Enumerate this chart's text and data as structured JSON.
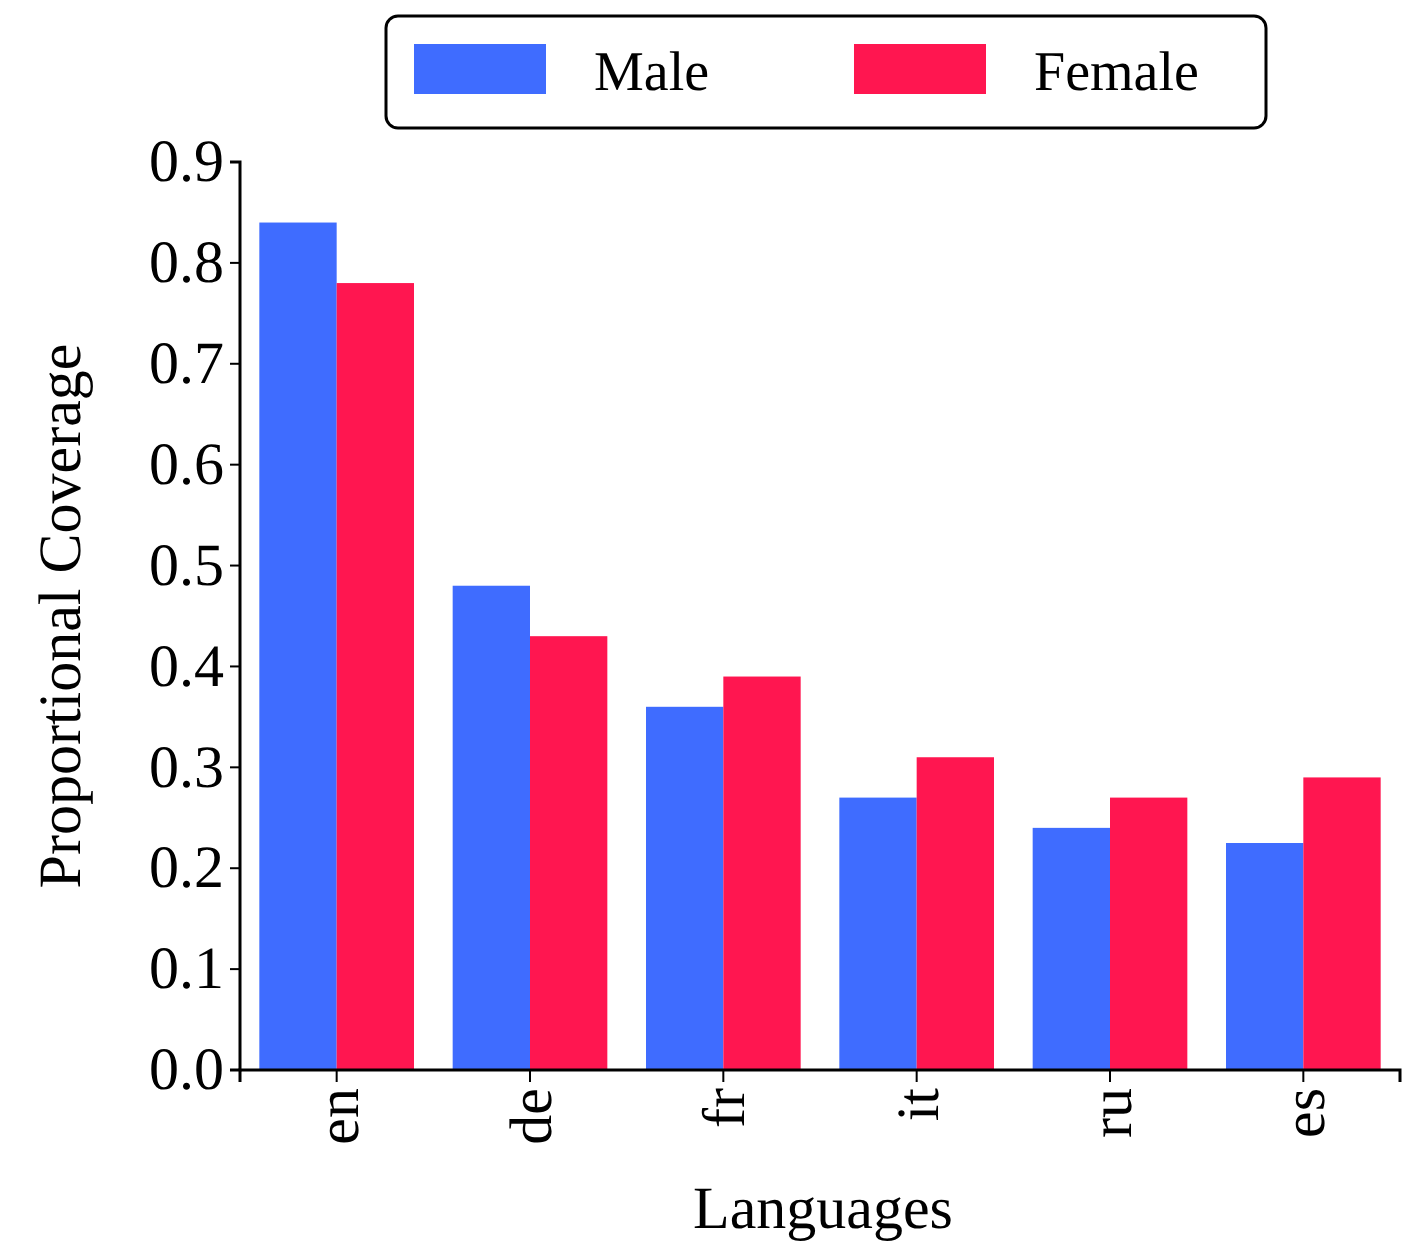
{
  "chart_data": {
    "type": "bar",
    "xlabel": "Languages",
    "ylabel": "Proportional Coverage",
    "categories": [
      "en",
      "de",
      "fr",
      "it",
      "ru",
      "es"
    ],
    "series": [
      {
        "name": "Male",
        "color": "#3f6cff",
        "values": [
          0.84,
          0.48,
          0.36,
          0.27,
          0.24,
          0.225
        ]
      },
      {
        "name": "Female",
        "color": "#ff1650",
        "values": [
          0.78,
          0.43,
          0.39,
          0.31,
          0.27,
          0.29
        ]
      }
    ],
    "ylim": [
      0,
      0.9
    ],
    "yticks": [
      {
        "value": 0,
        "label": "0.0"
      },
      0.1,
      0.2,
      0.3,
      0.4,
      0.5,
      0.6,
      0.7,
      0.8,
      0.9
    ],
    "legend": "top",
    "grid": false
  }
}
